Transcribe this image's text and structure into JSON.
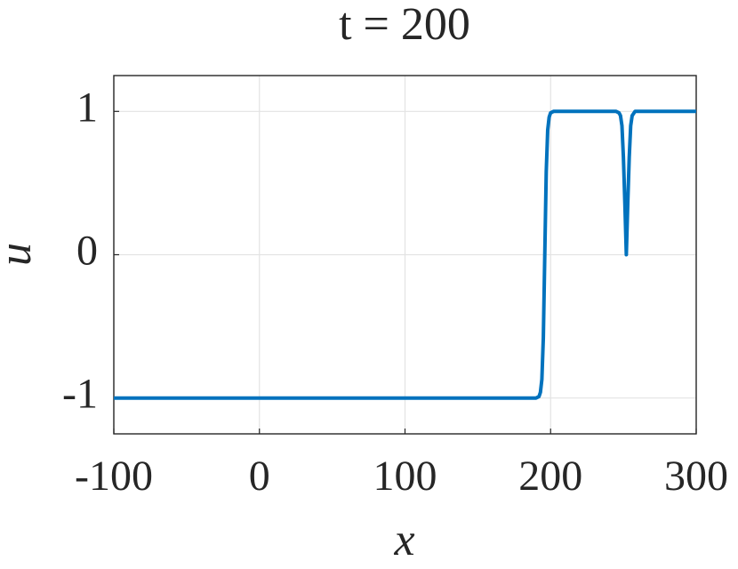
{
  "chart_data": {
    "type": "line",
    "title": "t = 200",
    "x_label": "x",
    "y_label": "u",
    "x": [
      -100,
      190,
      192,
      193,
      194,
      195,
      196,
      197,
      198,
      199,
      200,
      202,
      245,
      247,
      248,
      249,
      250,
      251,
      252,
      253,
      254,
      255,
      256,
      258,
      300
    ],
    "series": [
      {
        "name": "u",
        "color": "#0072bd",
        "values": [
          -1,
          -1,
          -0.99,
          -0.96,
          -0.87,
          -0.58,
          0,
          0.58,
          0.87,
          0.96,
          0.99,
          1,
          1,
          0.99,
          0.97,
          0.9,
          0.68,
          0.36,
          0,
          0.36,
          0.68,
          0.9,
          0.97,
          1,
          1
        ]
      }
    ],
    "xlim": [
      -100,
      300
    ],
    "xticks": [
      -100,
      0,
      100,
      200,
      300
    ],
    "ylim": [
      -1.25,
      1.25
    ],
    "yticks": [
      -1,
      0,
      1
    ],
    "grid": true
  }
}
